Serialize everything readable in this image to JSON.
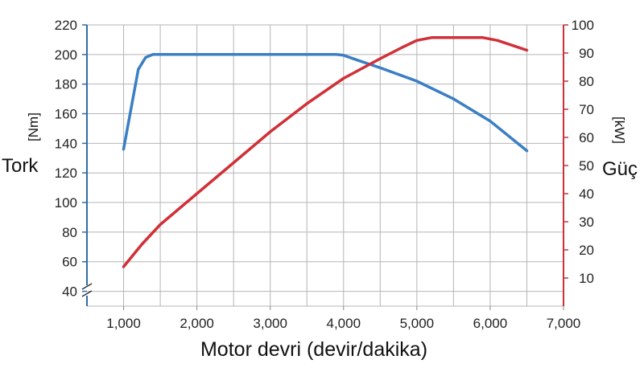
{
  "chart_data": {
    "type": "line",
    "title": "",
    "xlabel": "Motor devri (devir/dakika)",
    "x_ticks": [
      "1,000",
      "2,000",
      "3,000",
      "4,000",
      "5,000",
      "6,000",
      "7,000"
    ],
    "x_range": [
      500,
      7000
    ],
    "y_left": {
      "label": "Tork",
      "unit": "[Nm]",
      "range": [
        30,
        220
      ],
      "ticks": [
        40,
        60,
        80,
        100,
        120,
        140,
        160,
        180,
        200,
        220
      ],
      "color": "#2e6da4"
    },
    "y_right": {
      "label": "Güç",
      "unit": "[kW]",
      "range": [
        0,
        100
      ],
      "ticks": [
        10,
        20,
        30,
        40,
        50,
        60,
        70,
        80,
        90,
        100
      ],
      "color": "#c8323c"
    },
    "grid": true,
    "axis_break": "left-bottom",
    "series": [
      {
        "axis": "left",
        "color": "#3a7fc4",
        "x": [
          1000,
          1200,
          1300,
          1400,
          2000,
          3000,
          3900,
          4000,
          4200,
          4500,
          5000,
          5500,
          6000,
          6500
        ],
        "y": [
          136,
          190,
          198,
          200,
          200,
          200,
          200,
          199.5,
          196,
          191,
          182,
          170,
          155,
          135
        ]
      },
      {
        "axis": "right",
        "color": "#d03038",
        "x": [
          1000,
          1250,
          1500,
          2000,
          2500,
          3000,
          3500,
          4000,
          4500,
          4800,
          5000,
          5200,
          5500,
          5900,
          6100,
          6500
        ],
        "y": [
          14,
          22,
          29,
          40,
          51,
          62,
          72,
          81,
          88,
          92,
          94.5,
          95.5,
          95.5,
          95.5,
          94.5,
          91
        ]
      }
    ]
  }
}
